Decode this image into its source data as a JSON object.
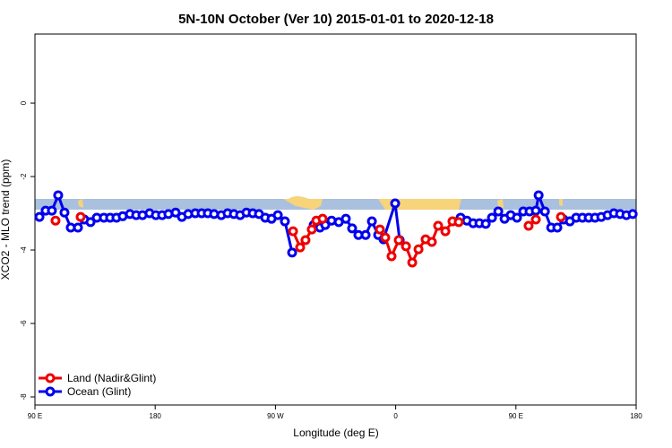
{
  "chart_data": {
    "type": "line",
    "title": "5N-10N October (Ver 10)   2015-01-01 to 2020-12-18",
    "x_label": "Longitude (deg E)",
    "y_label": "XCO2 - MLO trend (ppm)",
    "xlim": [
      90,
      540
    ],
    "ylim": [
      -8.22,
      1.88
    ],
    "xticks": [
      {
        "value": 90,
        "label": "90 E"
      },
      180,
      {
        "value": 270,
        "label": "90 W"
      },
      {
        "value": 360,
        "label": "0"
      },
      {
        "value": 450,
        "label": "90 E"
      },
      {
        "value": 540,
        "label": "180"
      }
    ],
    "yticks": [
      -8,
      -6,
      -4,
      -2,
      0
    ],
    "legend": "lower left",
    "series": [
      {
        "name": "Ocean (Glint)",
        "color": "#0000ee",
        "x": [
          93.4,
          98.0,
          102.7,
          107.4,
          112.1,
          116.8,
          122.2,
          126.9,
          131.6,
          136.3,
          141.6,
          146.3,
          151.0,
          155.7,
          161.1,
          165.8,
          170.5,
          175.8,
          180.5,
          185.2,
          189.9,
          195.3,
          200.0,
          204.7,
          210.0,
          214.8,
          219.4,
          224.1,
          229.5,
          234.2,
          238.9,
          243.6,
          248.3,
          253.0,
          257.7,
          262.4,
          267.1,
          271.8,
          277.1,
          282.5,
          null,
          298.6,
          303.3,
          307.3,
          312.0,
          317.4,
          322.7,
          327.4,
          332.1,
          337.5,
          342.2,
          346.9,
          350.9,
          359.6,
          363.0,
          null,
          408.6,
          413.3,
          418.0,
          422.7,
          427.4,
          432.1,
          436.8,
          441.5,
          446.1,
          450.8,
          455.5,
          460.2,
          464.9,
          467.0,
          471.7,
          476.4,
          481.0,
          485.7,
          490.4,
          495.1,
          499.8,
          504.5,
          509.2,
          513.9,
          518.6,
          523.3,
          528.0,
          532.7,
          537.4
        ],
        "values": [
          -3.1,
          -2.93,
          -2.93,
          -2.51,
          -2.98,
          -3.39,
          -3.39,
          -3.17,
          -3.24,
          -3.12,
          -3.12,
          -3.12,
          -3.12,
          -3.08,
          -3.02,
          -3.05,
          -3.05,
          -3.0,
          -3.05,
          -3.05,
          -3.02,
          -2.98,
          -3.1,
          -3.02,
          -3.0,
          -3.0,
          -3.0,
          -3.02,
          -3.05,
          -3.0,
          -3.02,
          -3.05,
          -2.98,
          -3.0,
          -3.02,
          -3.12,
          -3.15,
          -3.05,
          -3.22,
          -4.07,
          null,
          -3.32,
          -3.39,
          -3.32,
          -3.2,
          -3.24,
          -3.15,
          -3.41,
          -3.59,
          -3.59,
          -3.22,
          -3.59,
          -3.71,
          -2.73,
          -3.73,
          null,
          -3.12,
          -3.2,
          -3.27,
          -3.27,
          -3.29,
          -3.12,
          -2.95,
          -3.15,
          -3.05,
          -3.12,
          -2.95,
          -2.95,
          -2.93,
          -2.51,
          -2.95,
          -3.39,
          -3.39,
          -3.17,
          -3.22,
          -3.12,
          -3.12,
          -3.12,
          -3.12,
          -3.1,
          -3.05,
          -3.0,
          -3.02,
          -3.05,
          -3.02
        ]
      },
      {
        "name": "Land (Nadir&Glint)",
        "color": "#ee0000",
        "x": [
          105.4,
          null,
          124.2,
          null,
          283.2,
          288.5,
          292.5,
          297.2,
          300.6,
          305.3,
          null,
          348.2,
          352.2,
          356.9,
          362.3,
          367.7,
          372.4,
          377.1,
          382.4,
          387.1,
          391.8,
          397.2,
          402.5,
          407.2,
          null,
          459.5,
          null,
          464.9,
          null,
          483.7
        ],
        "values": [
          -3.2,
          null,
          -3.1,
          null,
          -3.49,
          -3.93,
          -3.73,
          -3.44,
          -3.2,
          -3.15,
          null,
          -3.44,
          -3.66,
          -4.17,
          -3.73,
          -3.9,
          -4.34,
          -3.98,
          -3.71,
          -3.78,
          -3.34,
          -3.49,
          -3.22,
          -3.24,
          null,
          -3.34,
          null,
          -3.17,
          null,
          -3.1
        ]
      }
    ]
  }
}
